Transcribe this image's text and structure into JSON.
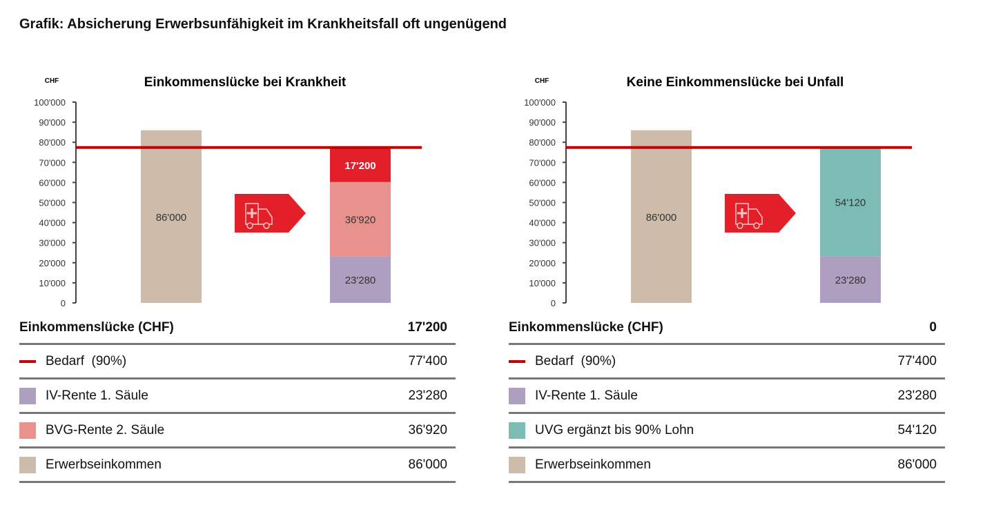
{
  "title": "Grafik: Absicherung Erwerbsunfähigkeit im Krankheitsfall oft ungenügend",
  "chart_data": [
    {
      "type": "bar",
      "stacked": true,
      "title": "Einkommenslücke bei Krankheit",
      "ylabel": "CHF",
      "ylim": [
        0,
        100000
      ],
      "yticks": [
        "0",
        "10'000",
        "20'000",
        "30'000",
        "40'000",
        "50'000",
        "60'000",
        "70'000",
        "80'000",
        "90'000",
        "100'000"
      ],
      "reference_line": {
        "name": "Bedarf (90%)",
        "value": 77400,
        "color": "#c00000"
      },
      "bars": [
        {
          "segments": [
            {
              "name": "Erwerbseinkommen",
              "value": 86000,
              "label": "86'000",
              "color": "#cdbcaa",
              "label_color": "#333"
            }
          ]
        },
        {
          "segments": [
            {
              "name": "IV-Rente 1. Säule",
              "value": 23280,
              "label": "23'280",
              "color": "#ae9fc0",
              "label_color": "#333"
            },
            {
              "name": "BVG-Rente 2. Säule",
              "value": 36920,
              "label": "36'920",
              "color": "#e8918d",
              "label_color": "#333"
            },
            {
              "name": "Einkommenslücke",
              "value": 17200,
              "label": "17'200",
              "color": "#e3202a",
              "label_color": "#fff"
            }
          ]
        }
      ],
      "icon": "ambulance-icon",
      "table": {
        "header": {
          "label": "Einkommenslücke (CHF)",
          "value": "17'200"
        },
        "rows": [
          {
            "label": "Bedarf  (90%)",
            "value": "77'400",
            "color": "#c00000",
            "kind": "line"
          },
          {
            "label": "IV-Rente 1. Säule",
            "value": "23'280",
            "color": "#ae9fc0"
          },
          {
            "label": "BVG-Rente 2. Säule",
            "value": "36'920",
            "color": "#e8918d"
          },
          {
            "label": "Erwerbseinkommen",
            "value": "86'000",
            "color": "#cdbcaa"
          }
        ]
      }
    },
    {
      "type": "bar",
      "stacked": true,
      "title": "Keine Einkommenslücke bei Unfall",
      "ylabel": "CHF",
      "ylim": [
        0,
        100000
      ],
      "yticks": [
        "0",
        "10'000",
        "20'000",
        "30'000",
        "40'000",
        "50'000",
        "60'000",
        "70'000",
        "80'000",
        "90'000",
        "100'000"
      ],
      "reference_line": {
        "name": "Bedarf (90%)",
        "value": 77400,
        "color": "#c00000"
      },
      "bars": [
        {
          "segments": [
            {
              "name": "Erwerbseinkommen",
              "value": 86000,
              "label": "86'000",
              "color": "#cdbcaa",
              "label_color": "#333"
            }
          ]
        },
        {
          "segments": [
            {
              "name": "IV-Rente 1. Säule",
              "value": 23280,
              "label": "23'280",
              "color": "#ae9fc0",
              "label_color": "#333"
            },
            {
              "name": "UVG ergänzt bis 90% Lohn",
              "value": 54120,
              "label": "54'120",
              "color": "#7dbcb5",
              "label_color": "#333"
            }
          ]
        }
      ],
      "icon": "ambulance-icon",
      "table": {
        "header": {
          "label": "Einkommenslücke (CHF)",
          "value": "0"
        },
        "rows": [
          {
            "label": "Bedarf  (90%)",
            "value": "77'400",
            "color": "#c00000",
            "kind": "line"
          },
          {
            "label": "IV-Rente 1. Säule",
            "value": "23'280",
            "color": "#ae9fc0"
          },
          {
            "label": "UVG ergänzt bis 90% Lohn",
            "value": "54'120",
            "color": "#7dbcb5"
          },
          {
            "label": "Erwerbseinkommen",
            "value": "86'000",
            "color": "#cdbcaa"
          }
        ]
      }
    }
  ]
}
